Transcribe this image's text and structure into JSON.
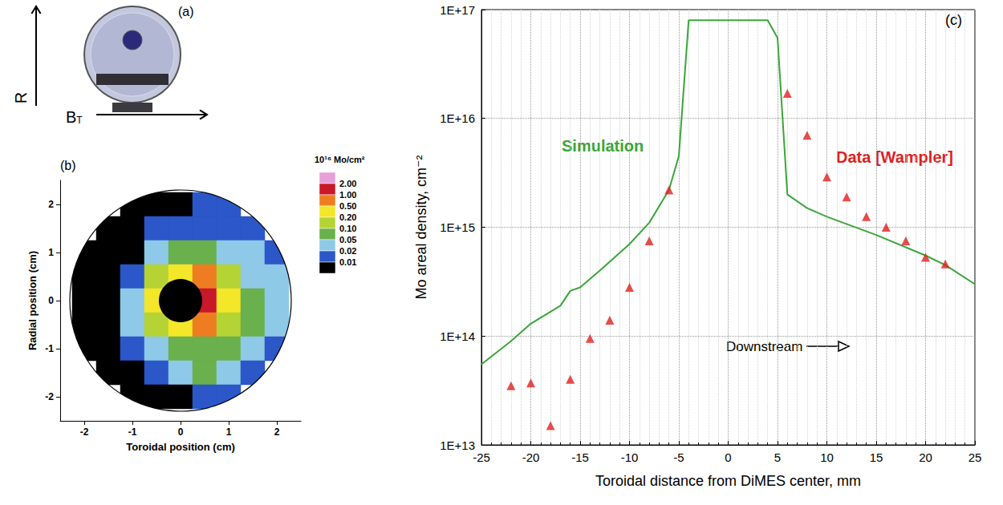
{
  "panel_a": {
    "panel_label": "(a)",
    "vertical_arrow": "R",
    "horizontal_arrow": "B",
    "horizontal_arrow_subscript": "T"
  },
  "chart_data": [
    {
      "type": "heatmap",
      "panel_label": "(b)",
      "xlabel": "Toroidal position (cm)",
      "ylabel": "Radial position (cm)",
      "xlim": [
        -2.5,
        2.5
      ],
      "xticks": [
        -2,
        -1,
        0,
        1,
        2
      ],
      "ylim": [
        -2.5,
        2.5
      ],
      "yticks": [
        -2,
        -1,
        0,
        1,
        2
      ],
      "cells": [
        [
          -1,
          2,
          0.005
        ],
        [
          -0.5,
          2,
          0.005
        ],
        [
          0,
          2,
          0.006
        ],
        [
          0.5,
          2,
          0.012
        ],
        [
          1,
          2,
          0.012
        ],
        [
          -1.5,
          1.5,
          0.003
        ],
        [
          -1,
          1.5,
          0.005
        ],
        [
          -0.5,
          1.5,
          0.012
        ],
        [
          0,
          1.5,
          0.015
        ],
        [
          0.5,
          1.5,
          0.016
        ],
        [
          1,
          1.5,
          0.015
        ],
        [
          1.5,
          1.5,
          0.01
        ],
        [
          -2,
          1,
          0.003
        ],
        [
          -1.5,
          1,
          0.005
        ],
        [
          -1,
          1,
          0.008
        ],
        [
          -0.5,
          1,
          0.03
        ],
        [
          0,
          1,
          0.06
        ],
        [
          0.5,
          1,
          0.06
        ],
        [
          1,
          1,
          0.04
        ],
        [
          1.5,
          1,
          0.025
        ],
        [
          2,
          1,
          0.012
        ],
        [
          -2,
          0.5,
          0.003
        ],
        [
          -1.5,
          0.5,
          0.006
        ],
        [
          -1,
          0.5,
          0.015
        ],
        [
          -0.5,
          0.5,
          0.15
        ],
        [
          0,
          0.5,
          0.4
        ],
        [
          0.5,
          0.5,
          0.7
        ],
        [
          1,
          0.5,
          0.15
        ],
        [
          1.5,
          0.5,
          0.04
        ],
        [
          2,
          0.5,
          0.02
        ],
        [
          -2,
          0,
          0.004
        ],
        [
          -1.5,
          0,
          0.008
        ],
        [
          -1,
          0,
          0.03
        ],
        [
          -0.5,
          0,
          0.3
        ],
        [
          0.5,
          0,
          1.2
        ],
        [
          1,
          0,
          0.25
        ],
        [
          1.5,
          0,
          0.06
        ],
        [
          2,
          0,
          0.025
        ],
        [
          -2,
          -0.5,
          0.003
        ],
        [
          -1.5,
          -0.5,
          0.006
        ],
        [
          -1,
          -0.5,
          0.02
        ],
        [
          -0.5,
          -0.5,
          0.15
        ],
        [
          0,
          -0.5,
          0.4
        ],
        [
          0.5,
          -0.5,
          0.5
        ],
        [
          1,
          -0.5,
          0.15
        ],
        [
          1.5,
          -0.5,
          0.06
        ],
        [
          2,
          -0.5,
          0.02
        ],
        [
          -2,
          -1,
          0.003
        ],
        [
          -1.5,
          -1,
          0.005
        ],
        [
          -1,
          -1,
          0.012
        ],
        [
          -0.5,
          -1,
          0.03
        ],
        [
          0,
          -1,
          0.07
        ],
        [
          0.5,
          -1,
          0.07
        ],
        [
          1,
          -1,
          0.06
        ],
        [
          1.5,
          -1,
          0.03
        ],
        [
          2,
          -1,
          0.01
        ],
        [
          -1.5,
          -1.5,
          0.004
        ],
        [
          -1,
          -1.5,
          0.006
        ],
        [
          -0.5,
          -1.5,
          0.015
        ],
        [
          0,
          -1.5,
          0.03
        ],
        [
          0.5,
          -1.5,
          0.05
        ],
        [
          1,
          -1.5,
          0.04
        ],
        [
          1.5,
          -1.5,
          0.015
        ],
        [
          -1,
          -2,
          0.004
        ],
        [
          -0.5,
          -2,
          0.006
        ],
        [
          0,
          -2,
          0.008
        ],
        [
          0.5,
          -2,
          0.012
        ],
        [
          1,
          -2,
          0.01
        ]
      ],
      "color_bar": {
        "title": "10¹⁶ Mo/cm²",
        "levels": [
          0.01,
          0.02,
          0.05,
          {
            "value": 0.1,
            "label": "0.10"
          },
          {
            "value": 0.2,
            "label": "0.20"
          },
          {
            "value": 0.5,
            "label": "0.50"
          },
          {
            "value": 1,
            "label": "1.00"
          },
          {
            "value": 2,
            "label": "2.00"
          }
        ],
        "colors": [
          "#000000",
          "#2b57c9",
          "#8fc9e8",
          "#6ab04c",
          "#b5d334",
          "#f4e628",
          "#ee7d22",
          "#c8182a",
          "#e6a0d6"
        ]
      }
    },
    {
      "type": "line",
      "panel_label": "(c)",
      "xlabel": "Toroidal distance from DiMES center, mm",
      "ylabel": "Mo areal density, cm⁻²",
      "xlim": [
        -25,
        25
      ],
      "xticks": [
        -25,
        -20,
        -15,
        -10,
        -5,
        0,
        5,
        10,
        15,
        20,
        25
      ],
      "ylim": [
        10000000000000.0,
        1e+17
      ],
      "yticks": [
        {
          "value": 10000000000000.0,
          "label": "1E+13"
        },
        {
          "value": 100000000000000.0,
          "label": "1E+14"
        },
        {
          "value": 1000000000000000.0,
          "label": "1E+15"
        },
        {
          "value": 1e+16,
          "label": "1E+16"
        },
        {
          "value": 1e+17,
          "label": "1E+17"
        }
      ],
      "log": "y",
      "grid": true,
      "series": [
        {
          "name": "Simulation",
          "type": "line",
          "color": "#3aa63a",
          "line_style": "solid",
          "x": [
            -25,
            -22,
            -20,
            -17,
            -16,
            -15,
            -13,
            -10,
            -8,
            -6,
            -5,
            -4,
            4,
            5,
            6,
            8,
            10,
            15,
            20,
            22,
            25
          ],
          "values": [
            55000000000000.0,
            90000000000000.0,
            130000000000000.0,
            190000000000000.0,
            260000000000000.0,
            280000000000000.0,
            400000000000000.0,
            700000000000000.0,
            1100000000000000.0,
            2200000000000000.0,
            4500000000000000.0,
            8e+16,
            8e+16,
            5.5e+16,
            2000000000000000.0,
            1500000000000000.0,
            1250000000000000.0,
            850000000000000.0,
            550000000000000.0,
            450000000000000.0,
            300000000000000.0
          ]
        },
        {
          "name": "Data [Wampler]",
          "type": "scatter",
          "color": "#e0201e",
          "marker": "triangle",
          "x": [
            -22,
            -20,
            -18,
            -16,
            -14,
            -12,
            -10,
            -8,
            -6,
            6,
            8,
            10,
            12,
            14,
            16,
            18,
            20,
            22
          ],
          "values": [
            35000000000000.0,
            37000000000000.0,
            15000000000000.0,
            40000000000000.0,
            95000000000000.0,
            140000000000000.0,
            280000000000000.0,
            750000000000000.0,
            2200000000000000.0,
            1.7e+16,
            7000000000000000.0,
            2900000000000000.0,
            1900000000000000.0,
            1250000000000000.0,
            1000000000000000.0,
            750000000000000.0,
            530000000000000.0,
            460000000000000.0
          ]
        }
      ],
      "annotations": [
        {
          "text": "Downstream"
        }
      ]
    }
  ]
}
